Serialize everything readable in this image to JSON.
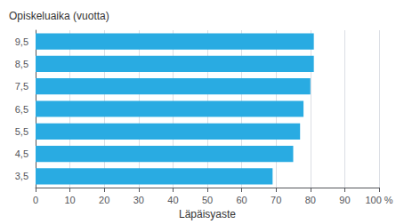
{
  "chart_data": {
    "type": "bar",
    "orientation": "horizontal",
    "categories": [
      "3,5",
      "4,5",
      "5,5",
      "6,5",
      "7,5",
      "8,5",
      "9,5"
    ],
    "values": [
      69,
      75,
      77,
      78,
      80,
      81,
      81
    ],
    "color": "#29abe2",
    "xlabel": "Läpäisyaste",
    "ylabel": "Opiskeluaika (vuotta)",
    "xlim": [
      0,
      100
    ],
    "xticks": [
      0,
      10,
      20,
      30,
      40,
      50,
      60,
      70,
      80,
      90,
      {
        "value": 100,
        "label": "100 %"
      }
    ],
    "grid": true
  }
}
